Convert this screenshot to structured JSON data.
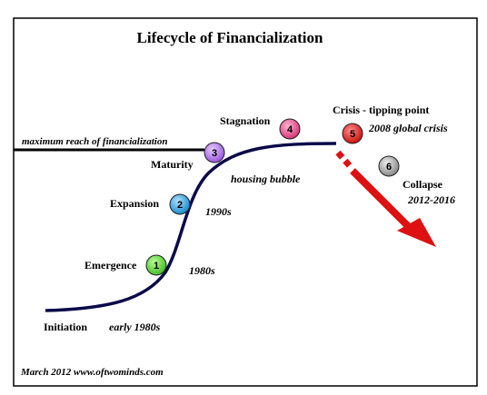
{
  "title": "Lifecycle of Financialization",
  "reach_line_label": "maximum reach of financialization",
  "stages": [
    {
      "number": "1",
      "name": "Emergence",
      "color": "#66dd44"
    },
    {
      "number": "2",
      "name": "Expansion",
      "color": "#33aaee"
    },
    {
      "number": "3",
      "name": "Maturity",
      "color": "#bb77ee"
    },
    {
      "number": "4",
      "name": "Stagnation",
      "color": "#ee5599"
    },
    {
      "number": "5",
      "name": "Crisis - tipping point",
      "color": "#ee2222"
    },
    {
      "number": "6",
      "name": "Collapse",
      "color": "#aaaaaa"
    }
  ],
  "initiation_label": "Initiation",
  "annotations": {
    "early_1980s": "early 1980s",
    "y1980s": "1980s",
    "y1990s": "1990s",
    "housing_bubble": "housing bubble",
    "global_crisis": "2008 global crisis",
    "collapse_years": "2012-2016"
  },
  "footer": "March 2012  www.oftwominds.com",
  "colors": {
    "curve": "#0a0a4a",
    "arrow": "#dd1111",
    "border": "#000000"
  }
}
